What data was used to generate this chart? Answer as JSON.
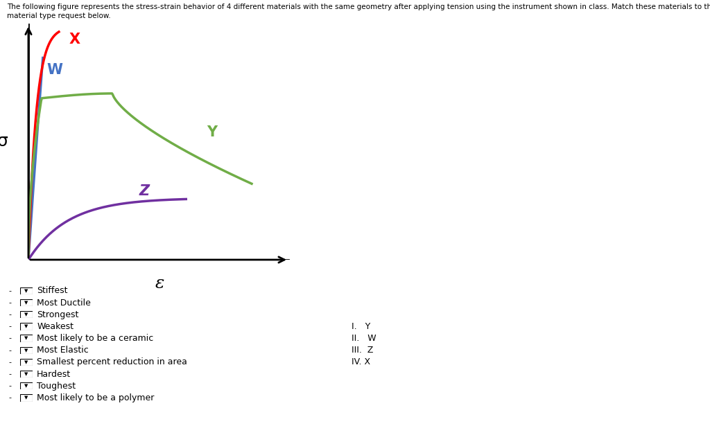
{
  "title_text": "The following figure represents the stress-strain behavior of 4 different materials with the same geometry after applying tension using the instrument shown in class. Match these materials to the property or material type request below.",
  "title_fontsize": 7.5,
  "sigma_label": "σ",
  "epsilon_label": "ε",
  "curves": {
    "W": {
      "color": "#4472C4",
      "label": "W",
      "label_color": "#4472C4"
    },
    "X": {
      "color": "#FF0000",
      "label": "X",
      "label_color": "#FF0000"
    },
    "Y": {
      "color": "#70AD47",
      "label": "Y",
      "label_color": "#70AD47"
    },
    "Z": {
      "color": "#7030A0",
      "label": "Z",
      "label_color": "#7030A0"
    }
  },
  "dropdown_items": [
    "Stiffest",
    "Most Ductile",
    "Strongest",
    "Weakest",
    "Most likely to be a ceramic",
    "Most Elastic",
    "Smallest percent reduction in area",
    "Hardest",
    "Toughest",
    "Most likely to be a polymer"
  ],
  "legend_items": [
    {
      "roman": "I.  ",
      "label": "Y"
    },
    {
      "roman": "II.  ",
      "label": "W"
    },
    {
      "roman": "III. ",
      "label": "Z"
    },
    {
      "roman": "IV.",
      "label": "X"
    }
  ],
  "background_color": "#FFFFFF"
}
